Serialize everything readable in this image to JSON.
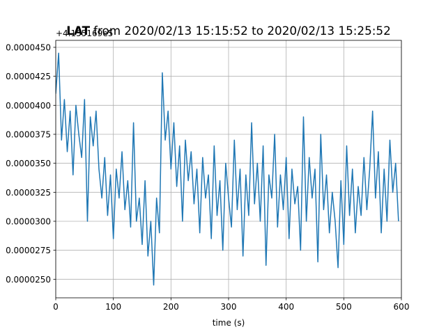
{
  "chart_data": {
    "type": "line",
    "title_bold": "LAT",
    "title": "from 2020/02/13 15:15:52 to 2020/02/13 15:25:52",
    "offset_label": "+4.155169e5",
    "x_label": "time (s)",
    "xlim": [
      0,
      600
    ],
    "xticks": [
      0,
      100,
      200,
      300,
      400,
      500,
      600
    ],
    "ylim": [
      2.34e-05,
      4.56e-05
    ],
    "yticks": [
      {
        "value": 2.5e-05,
        "label": "0.0000250"
      },
      {
        "value": 2.75e-05,
        "label": "0.0000275"
      },
      {
        "value": 3e-05,
        "label": "0.0000300"
      },
      {
        "value": 3.25e-05,
        "label": "0.0000325"
      },
      {
        "value": 3.5e-05,
        "label": "0.0000350"
      },
      {
        "value": 3.75e-05,
        "label": "0.0000375"
      },
      {
        "value": 4e-05,
        "label": "0.0000400"
      },
      {
        "value": 4.25e-05,
        "label": "0.0000425"
      },
      {
        "value": 4.5e-05,
        "label": "0.0000450"
      }
    ],
    "grid": true,
    "x": [
      0,
      5,
      10,
      15,
      20,
      25,
      30,
      35,
      40,
      45,
      50,
      55,
      60,
      65,
      70,
      75,
      80,
      85,
      90,
      95,
      100,
      105,
      110,
      115,
      120,
      125,
      130,
      135,
      140,
      145,
      150,
      155,
      160,
      165,
      170,
      175,
      180,
      185,
      190,
      195,
      200,
      205,
      210,
      215,
      220,
      225,
      230,
      235,
      240,
      245,
      250,
      255,
      260,
      265,
      270,
      275,
      280,
      285,
      290,
      295,
      300,
      305,
      310,
      315,
      320,
      325,
      330,
      335,
      340,
      345,
      350,
      355,
      360,
      365,
      370,
      375,
      380,
      385,
      390,
      395,
      400,
      405,
      410,
      415,
      420,
      425,
      430,
      435,
      440,
      445,
      450,
      455,
      460,
      465,
      470,
      475,
      480,
      485,
      490,
      495,
      500,
      505,
      510,
      515,
      520,
      525,
      530,
      535,
      540,
      545,
      550,
      555,
      560,
      565,
      570,
      575,
      580,
      585,
      590,
      595
    ],
    "series": [
      {
        "color": "#1f77b4",
        "values": [
          4.1e-05,
          4.45e-05,
          3.7e-05,
          4.05e-05,
          3.6e-05,
          3.95e-05,
          3.4e-05,
          4e-05,
          3.75e-05,
          3.55e-05,
          4.05e-05,
          3e-05,
          3.9e-05,
          3.65e-05,
          3.95e-05,
          3.45e-05,
          3.2e-05,
          3.55e-05,
          3.05e-05,
          3.4e-05,
          2.85e-05,
          3.45e-05,
          3.2e-05,
          3.6e-05,
          3.1e-05,
          3.35e-05,
          2.95e-05,
          3.85e-05,
          3e-05,
          3.2e-05,
          2.8e-05,
          3.35e-05,
          2.7e-05,
          3e-05,
          2.45e-05,
          3.2e-05,
          2.9e-05,
          4.28e-05,
          3.7e-05,
          3.95e-05,
          3.45e-05,
          3.85e-05,
          3.3e-05,
          3.65e-05,
          3e-05,
          3.7e-05,
          3.35e-05,
          3.6e-05,
          3.15e-05,
          3.45e-05,
          2.9e-05,
          3.55e-05,
          3.2e-05,
          3.4e-05,
          2.85e-05,
          3.65e-05,
          3.05e-05,
          3.35e-05,
          2.75e-05,
          3.5e-05,
          3.2e-05,
          2.95e-05,
          3.7e-05,
          3.1e-05,
          3.45e-05,
          2.7e-05,
          3.4e-05,
          3.05e-05,
          3.85e-05,
          3.15e-05,
          3.5e-05,
          3e-05,
          3.65e-05,
          2.62e-05,
          3.4e-05,
          3.2e-05,
          3.75e-05,
          2.95e-05,
          3.4e-05,
          3.1e-05,
          3.55e-05,
          2.85e-05,
          3.45e-05,
          3.15e-05,
          3.3e-05,
          2.75e-05,
          3.9e-05,
          3e-05,
          3.55e-05,
          3.2e-05,
          3.45e-05,
          2.65e-05,
          3.75e-05,
          3.1e-05,
          3.4e-05,
          2.9e-05,
          3.25e-05,
          3e-05,
          2.6e-05,
          3.35e-05,
          2.8e-05,
          3.65e-05,
          3.05e-05,
          3.45e-05,
          2.9e-05,
          3.3e-05,
          3.05e-05,
          3.55e-05,
          3.1e-05,
          3.45e-05,
          3.95e-05,
          3.2e-05,
          3.6e-05,
          2.9e-05,
          3.45e-05,
          3e-05,
          3.7e-05,
          3.25e-05,
          3.5e-05,
          3e-05
        ]
      }
    ]
  }
}
